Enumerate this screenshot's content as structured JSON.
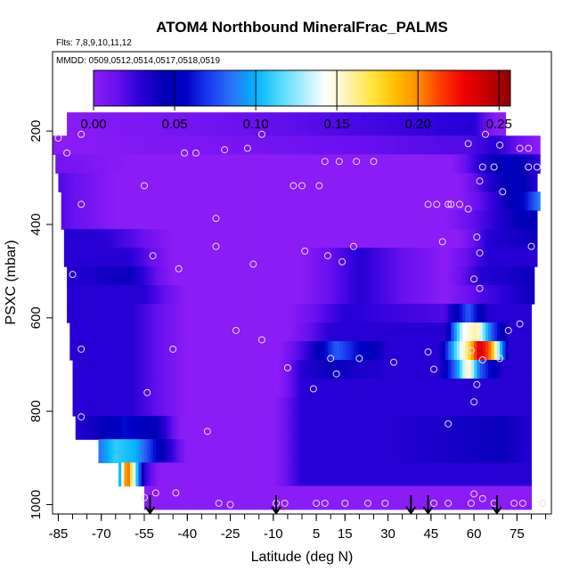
{
  "chart_data": {
    "type": "heatmap",
    "title": "ATOM4 Northbound MineralFrac_PALMS",
    "subtitle_flights": "Flts: 7,8,9,10,11,12",
    "subtitle_dates": "MMDD: 0509,0512,0514,0517,0518,0519",
    "xlabel": "Latitude (deg N)",
    "ylabel": "PSXC (mbar)",
    "xlim": [
      -87,
      87
    ],
    "ylim": [
      1020,
      30
    ],
    "y_reversed": true,
    "xticks": [
      -85,
      -70,
      -55,
      -40,
      -25,
      -10,
      5,
      15,
      30,
      45,
      60,
      75
    ],
    "yticks": [
      200,
      400,
      600,
      800,
      1000
    ],
    "colorbar": {
      "ticks": [
        0.0,
        0.05,
        0.1,
        0.15,
        0.2,
        0.25
      ],
      "tick_labels": [
        "0.00",
        "0.05",
        "0.10",
        "0.15",
        "0.20",
        "0.25"
      ],
      "range": [
        0,
        0.257
      ],
      "colors": [
        "#8a1cf5",
        "#6a10f0",
        "#2a00d8",
        "#0000b4",
        "#0000c8",
        "#1a3cf0",
        "#2a74f8",
        "#00b4ff",
        "#4cd8ff",
        "#a8ecff",
        "#ffffff",
        "#fff2b0",
        "#ffe640",
        "#ffc000",
        "#ff8c00",
        "#ff3a00",
        "#f00000",
        "#c40000",
        "#8e0000"
      ]
    },
    "grid": false,
    "level_edges_mbar": [
      160,
      210,
      250,
      290,
      330,
      370,
      410,
      450,
      490,
      530,
      570,
      610,
      650,
      690,
      730,
      770,
      810,
      860,
      910,
      960,
      1010
    ],
    "rows": [
      {
        "lat": [
          -85,
          60,
          68,
          78
        ],
        "vals": [
          0.0,
          0.03,
          0.0,
          0.0
        ],
        "x0": -82,
        "x1": 71
      },
      {
        "lat": [
          -85,
          58,
          68,
          82
        ],
        "vals": [
          0.0,
          0.02,
          0.03,
          0.0
        ],
        "x0": -87,
        "x1": 83
      },
      {
        "lat": [
          -85,
          -60,
          52,
          62,
          72,
          82
        ],
        "vals": [
          0.01,
          0.0,
          0.0,
          0.03,
          0.05,
          0.03
        ],
        "x0": -86,
        "x1": 83
      },
      {
        "lat": [
          -85,
          -65,
          55,
          65,
          75,
          82
        ],
        "vals": [
          0.02,
          0.0,
          0.0,
          0.03,
          0.05,
          0.03
        ],
        "x0": -85,
        "x1": 82
      },
      {
        "lat": [
          -85,
          -65,
          55,
          68,
          78,
          83
        ],
        "vals": [
          0.02,
          0.0,
          0.0,
          0.03,
          0.06,
          0.09
        ],
        "x0": -84,
        "x1": 83
      },
      {
        "lat": [
          -85,
          -65,
          50,
          62,
          74,
          82
        ],
        "vals": [
          0.02,
          0.0,
          0.0,
          0.02,
          0.04,
          0.05
        ],
        "x0": -84,
        "x1": 82
      },
      {
        "lat": [
          -84,
          -70,
          -60,
          -45,
          55,
          65,
          82
        ],
        "vals": [
          0.03,
          0.03,
          0.02,
          0.0,
          0.0,
          0.03,
          0.04
        ],
        "x0": -83,
        "x1": 82
      },
      {
        "lat": [
          -84,
          -60,
          -45,
          0,
          20,
          50,
          65,
          82
        ],
        "vals": [
          0.03,
          0.03,
          0.0,
          0.0,
          0.03,
          0.0,
          0.03,
          0.03
        ],
        "x0": -83,
        "x1": 82
      },
      {
        "lat": [
          -84,
          -60,
          -45,
          0,
          20,
          50,
          62,
          82
        ],
        "vals": [
          0.03,
          0.04,
          0.0,
          0.0,
          0.03,
          0.0,
          0.03,
          0.04
        ],
        "x0": -82,
        "x1": 81
      },
      {
        "lat": [
          -84,
          -55,
          -40,
          0,
          20,
          50,
          62,
          82
        ],
        "vals": [
          0.03,
          0.03,
          0.0,
          0.0,
          0.03,
          0.0,
          0.02,
          0.04
        ],
        "x0": -82,
        "x1": 81
      },
      {
        "lat": [
          -84,
          -60,
          -40,
          -5,
          15,
          50,
          58,
          65,
          80
        ],
        "vals": [
          0.03,
          0.03,
          0.0,
          0.0,
          0.03,
          0.02,
          0.08,
          0.03,
          0.03
        ],
        "x0": -82,
        "x1": 80
      },
      {
        "lat": [
          -84,
          -60,
          -40,
          -5,
          10,
          50,
          56,
          61,
          66,
          72,
          80
        ],
        "vals": [
          0.03,
          0.03,
          0.0,
          0.0,
          0.03,
          0.03,
          0.14,
          0.16,
          0.08,
          0.03,
          0.03
        ],
        "x0": -81,
        "x1": 80
      },
      {
        "lat": [
          -84,
          -60,
          -40,
          -8,
          3,
          12,
          30,
          48,
          54,
          58,
          62,
          66,
          72,
          80
        ],
        "vals": [
          0.03,
          0.03,
          0.0,
          0.0,
          0.03,
          0.08,
          0.03,
          0.03,
          0.12,
          0.17,
          0.24,
          0.2,
          0.03,
          0.03
        ],
        "x0": -81,
        "x1": 80
      },
      {
        "lat": [
          -84,
          -60,
          -40,
          -8,
          0,
          10,
          30,
          48,
          54,
          58,
          62,
          70,
          80
        ],
        "vals": [
          0.03,
          0.03,
          0.0,
          0.0,
          0.03,
          0.04,
          0.03,
          0.03,
          0.09,
          0.16,
          0.08,
          0.03,
          0.03
        ],
        "x0": -80,
        "x1": 80
      },
      {
        "lat": [
          -84,
          -60,
          -40,
          -8,
          0,
          10,
          48,
          60,
          80
        ],
        "vals": [
          0.03,
          0.03,
          0.0,
          0.0,
          0.03,
          0.03,
          0.03,
          0.03,
          0.03
        ],
        "x0": -80,
        "x1": 80
      },
      {
        "lat": [
          -84,
          -60,
          -40,
          -10,
          0,
          20,
          55,
          80
        ],
        "vals": [
          0.03,
          0.03,
          0.0,
          0.0,
          0.03,
          0.03,
          0.03,
          0.03
        ],
        "x0": -80,
        "x1": 80
      },
      {
        "lat": [
          -80,
          -70,
          -62,
          -50,
          -42,
          -10,
          0,
          30,
          70,
          80
        ],
        "vals": [
          0.03,
          0.04,
          0.06,
          0.04,
          0.0,
          0.0,
          0.03,
          0.03,
          0.04,
          0.03
        ],
        "x0": -79,
        "x1": 80
      },
      {
        "lat": [
          -75,
          -72,
          -65,
          -58,
          -48,
          -40,
          -10,
          0,
          30,
          70,
          80
        ],
        "vals": [
          0.04,
          0.08,
          0.11,
          0.1,
          0.04,
          0.0,
          0.0,
          0.03,
          0.03,
          0.04,
          0.03
        ],
        "x0": -71,
        "x1": 80
      },
      {
        "lat": [
          -64,
          -61,
          -58,
          -55,
          -50,
          -40,
          -10,
          0,
          30,
          70,
          80
        ],
        "vals": [
          0.08,
          0.22,
          0.12,
          0.03,
          0.0,
          0.0,
          0.0,
          0.03,
          0.03,
          0.03,
          0.03
        ],
        "x0": -64,
        "x1": 80
      },
      {
        "lat": [
          -55,
          -45,
          -10,
          0,
          10,
          40,
          80
        ],
        "vals": [
          0.0,
          0.0,
          0.0,
          0.0,
          0.0,
          0.0,
          0.0
        ],
        "x0": -55,
        "x1": 80
      }
    ],
    "observation_points": [
      [
        -85,
        215
      ],
      [
        -77,
        207
      ],
      [
        -82,
        247
      ],
      [
        -41,
        247
      ],
      [
        -37,
        247
      ],
      [
        -27,
        240
      ],
      [
        -19,
        237
      ],
      [
        -14,
        207
      ],
      [
        -55,
        317
      ],
      [
        -3,
        317
      ],
      [
        0,
        317
      ],
      [
        6,
        317
      ],
      [
        8,
        265
      ],
      [
        13,
        265
      ],
      [
        19,
        265
      ],
      [
        25,
        265
      ],
      [
        64,
        207
      ],
      [
        58,
        227
      ],
      [
        69,
        230
      ],
      [
        76,
        237
      ],
      [
        79,
        237
      ],
      [
        67,
        277
      ],
      [
        63,
        277
      ],
      [
        79,
        277
      ],
      [
        82,
        277
      ],
      [
        62,
        307
      ],
      [
        70,
        330
      ],
      [
        -77,
        357
      ],
      [
        -30,
        387
      ],
      [
        -52,
        467
      ],
      [
        -43,
        495
      ],
      [
        -30,
        447
      ],
      [
        -17,
        485
      ],
      [
        1,
        457
      ],
      [
        9,
        467
      ],
      [
        14,
        480
      ],
      [
        18,
        447
      ],
      [
        44,
        357
      ],
      [
        47,
        357
      ],
      [
        51,
        357
      ],
      [
        49,
        437
      ],
      [
        52,
        357
      ],
      [
        55,
        357
      ],
      [
        58,
        367
      ],
      [
        61,
        427
      ],
      [
        62,
        461
      ],
      [
        60,
        517
      ],
      [
        62,
        537
      ],
      [
        80,
        447
      ],
      [
        -80,
        507
      ],
      [
        -77,
        667
      ],
      [
        -45,
        667
      ],
      [
        -23,
        627
      ],
      [
        -14,
        647
      ],
      [
        -5,
        707
      ],
      [
        12,
        720
      ],
      [
        10,
        687
      ],
      [
        20,
        687
      ],
      [
        32,
        695
      ],
      [
        44,
        673
      ],
      [
        46,
        710
      ],
      [
        59,
        670
      ],
      [
        61,
        743
      ],
      [
        63,
        690
      ],
      [
        69,
        687
      ],
      [
        72,
        627
      ],
      [
        76,
        613
      ],
      [
        -54,
        760
      ],
      [
        4,
        752
      ],
      [
        60,
        780
      ],
      [
        -77,
        812
      ],
      [
        51,
        827
      ],
      [
        -33,
        843
      ],
      [
        -55,
        985
      ],
      [
        -51,
        975
      ],
      [
        -44,
        975
      ],
      [
        -29,
        997
      ],
      [
        -25,
        1000
      ],
      [
        -9,
        997
      ],
      [
        -6,
        997
      ],
      [
        5,
        997
      ],
      [
        8,
        997
      ],
      [
        15,
        997
      ],
      [
        23,
        997
      ],
      [
        29,
        997
      ],
      [
        46,
        997
      ],
      [
        51,
        997
      ],
      [
        59,
        997
      ],
      [
        60,
        977
      ],
      [
        63,
        987
      ],
      [
        67,
        997
      ],
      [
        74,
        997
      ],
      [
        77,
        997
      ],
      [
        84,
        997
      ]
    ],
    "flight_markers_lat": [
      -53,
      -9,
      38,
      44,
      68
    ],
    "plot_background": "#8a1cf5",
    "axis_color": "#000000"
  }
}
